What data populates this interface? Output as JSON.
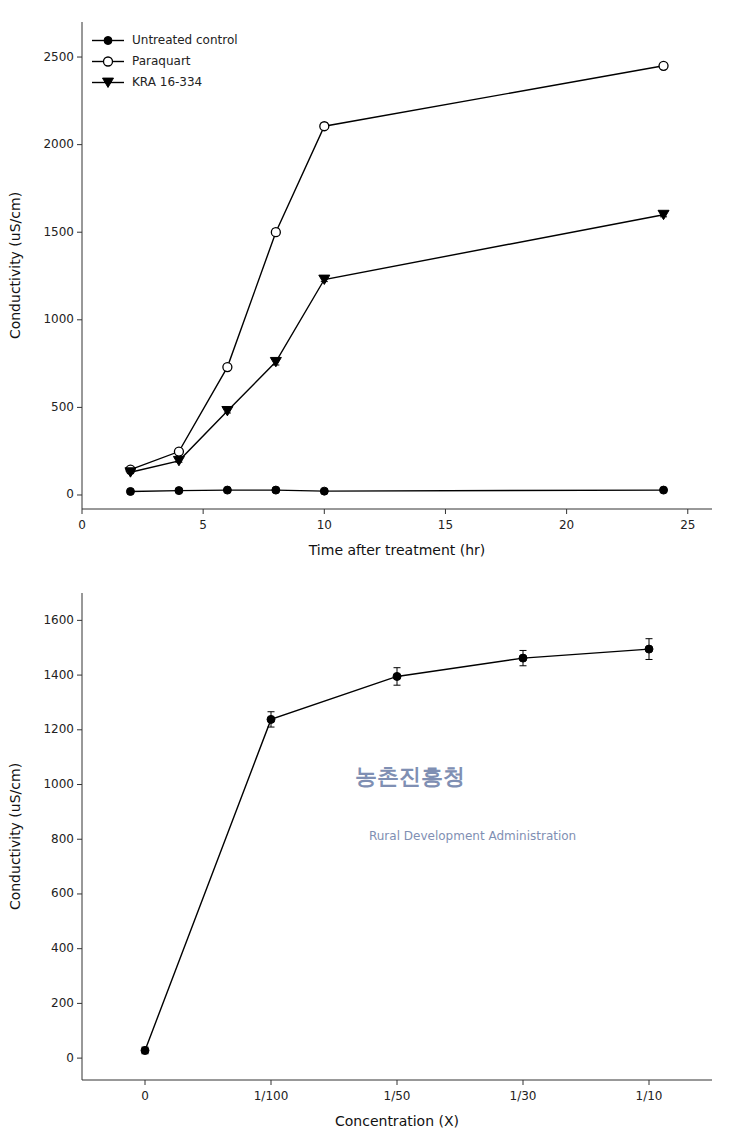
{
  "chart_data": [
    {
      "type": "line",
      "xlabel": "Time after treatment (hr)",
      "ylabel": "Conductivity (uS/cm)",
      "xlim": [
        0,
        26
      ],
      "ylim": [
        -80,
        2700
      ],
      "xticks": [
        0,
        5,
        10,
        15,
        20,
        25
      ],
      "yticks": [
        0,
        500,
        1000,
        1500,
        2000,
        2500
      ],
      "grid": false,
      "legend": "upper left",
      "x": [
        2,
        4,
        6,
        8,
        10,
        24
      ],
      "series": [
        {
          "name": "Untreated control",
          "color": "black",
          "marker": "circle",
          "line_style": "solid",
          "values": [
            20,
            25,
            28,
            28,
            22,
            28
          ],
          "errors": [
            4,
            4,
            4,
            4,
            4,
            4
          ]
        },
        {
          "name": "Paraquart",
          "color": "black",
          "marker": "open-circle",
          "line_style": "solid",
          "values": [
            145,
            248,
            730,
            1500,
            2105,
            2450
          ],
          "errors": [
            8,
            8,
            12,
            18,
            18,
            18
          ]
        },
        {
          "name": "KRA 16-334",
          "color": "black",
          "marker": "triangle-down",
          "line_style": "solid",
          "values": [
            130,
            195,
            480,
            760,
            1230,
            1600
          ],
          "errors": [
            8,
            8,
            12,
            18,
            12,
            12
          ]
        }
      ]
    },
    {
      "type": "line",
      "xlabel": "Concentration (X)",
      "ylabel": "Conductivity (uS/cm)",
      "ylim": [
        -80,
        1700
      ],
      "yticks": [
        0,
        200,
        400,
        600,
        800,
        1000,
        1200,
        1400,
        1600
      ],
      "grid": false,
      "categories": [
        "0",
        "1/100",
        "1/50",
        "1/30",
        "1/10"
      ],
      "annotations": [
        "농촌진흥청",
        "Rural Development Administration"
      ],
      "series": [
        {
          "color": "black",
          "marker": "circle",
          "line_style": "solid",
          "values": [
            28,
            1238,
            1395,
            1462,
            1495
          ],
          "errors": [
            12,
            28,
            32,
            28,
            38
          ]
        }
      ]
    }
  ]
}
